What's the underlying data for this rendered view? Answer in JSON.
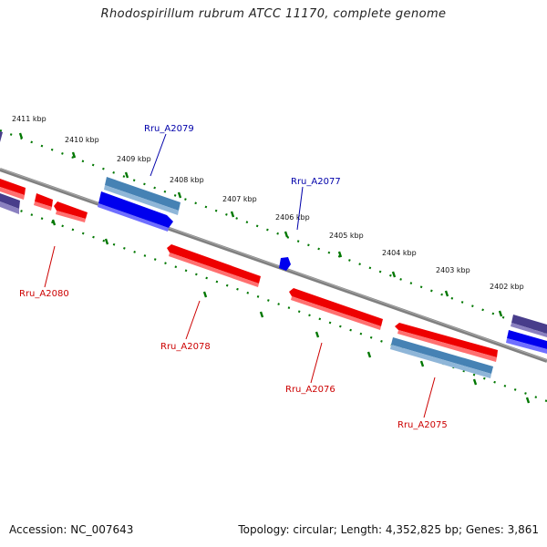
{
  "title": "Rhodospirillum rubrum ATCC 11170, complete genome",
  "footer": {
    "accession": "Accession: NC_007643",
    "topology": "Topology: circular; Length: 4,352,825 bp; Genes: 3,861"
  },
  "colors": {
    "backbone": "#808080",
    "forward_cds": "#ff0000",
    "reverse_cds": "#0000ff",
    "rna_like": "#4682b4",
    "other": "#483d8b",
    "tick": "#007700",
    "label_forward": "#cc0000",
    "label_reverse": "#0000aa"
  },
  "kbp_labels": [
    {
      "text": "2411 kbp",
      "kbp": 2411
    },
    {
      "text": "2410 kbp",
      "kbp": 2410
    },
    {
      "text": "2409 kbp",
      "kbp": 2409
    },
    {
      "text": "2408 kbp",
      "kbp": 2408
    },
    {
      "text": "2407 kbp",
      "kbp": 2407
    },
    {
      "text": "2406 kbp",
      "kbp": 2406
    },
    {
      "text": "2405 kbp",
      "kbp": 2405
    },
    {
      "text": "2404 kbp",
      "kbp": 2404
    },
    {
      "text": "2403 kbp",
      "kbp": 2403
    },
    {
      "text": "2402 kbp",
      "kbp": 2402
    }
  ],
  "gene_labels": [
    {
      "text": "Rru_A2079",
      "strand": "reverse"
    },
    {
      "text": "Rru_A2077",
      "strand": "reverse"
    },
    {
      "text": "Rru_A2080",
      "strand": "forward"
    },
    {
      "text": "Rru_A2078",
      "strand": "forward"
    },
    {
      "text": "Rru_A2076",
      "strand": "forward"
    },
    {
      "text": "Rru_A2075",
      "strand": "forward"
    }
  ]
}
